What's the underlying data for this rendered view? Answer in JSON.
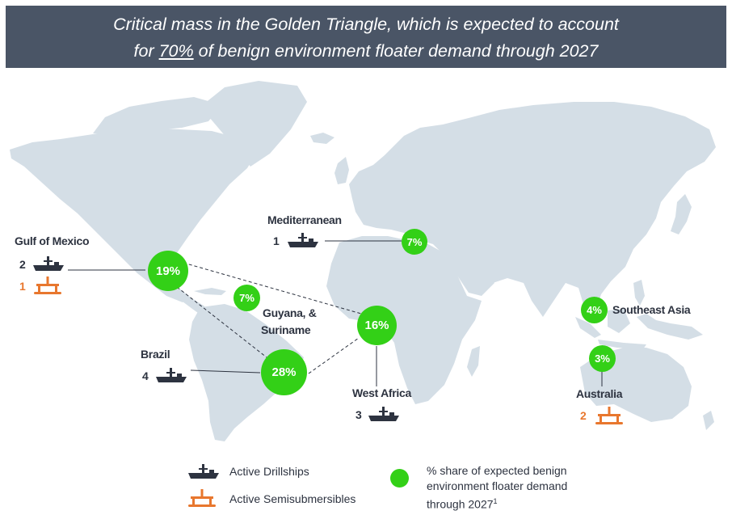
{
  "banner": {
    "line1": "Critical mass in the Golden Triangle, which is expected to account",
    "line2_prefix": "for ",
    "line2_highlight": "70%",
    "line2_suffix": " of benign environment floater demand through 2027"
  },
  "colors": {
    "banner_bg": "#4a5566",
    "land": "#d4dee6",
    "bubble": "#33d017",
    "drillship": "#2d3340",
    "semisub": "#e8772e"
  },
  "regions": [
    {
      "name": "Gulf of Mexico",
      "share": "19%",
      "drillships": "2",
      "semisubs": "1"
    },
    {
      "name": "Mediterranean",
      "share": "7%",
      "drillships": "1"
    },
    {
      "name": "Guyana, &",
      "name2": "Suriname",
      "share": "7%"
    },
    {
      "name": "West Africa",
      "share": "16%",
      "drillships": "3"
    },
    {
      "name": "Brazil",
      "share": "28%",
      "drillships": "4"
    },
    {
      "name": "Southeast Asia",
      "share": "4%"
    },
    {
      "name": "Australia",
      "share": "3%",
      "semisubs": "2"
    }
  ],
  "legend": {
    "drillships_label": "Active Drillships",
    "semisubs_label": "Active Semisubmersibles",
    "share_label_line1": "% share of expected benign",
    "share_label_line2": "environment floater demand",
    "share_label_line3": "through 2027",
    "footnote": "1"
  },
  "icons": {
    "drillship": "drillship-icon",
    "semisub": "semisubmersible-icon"
  }
}
